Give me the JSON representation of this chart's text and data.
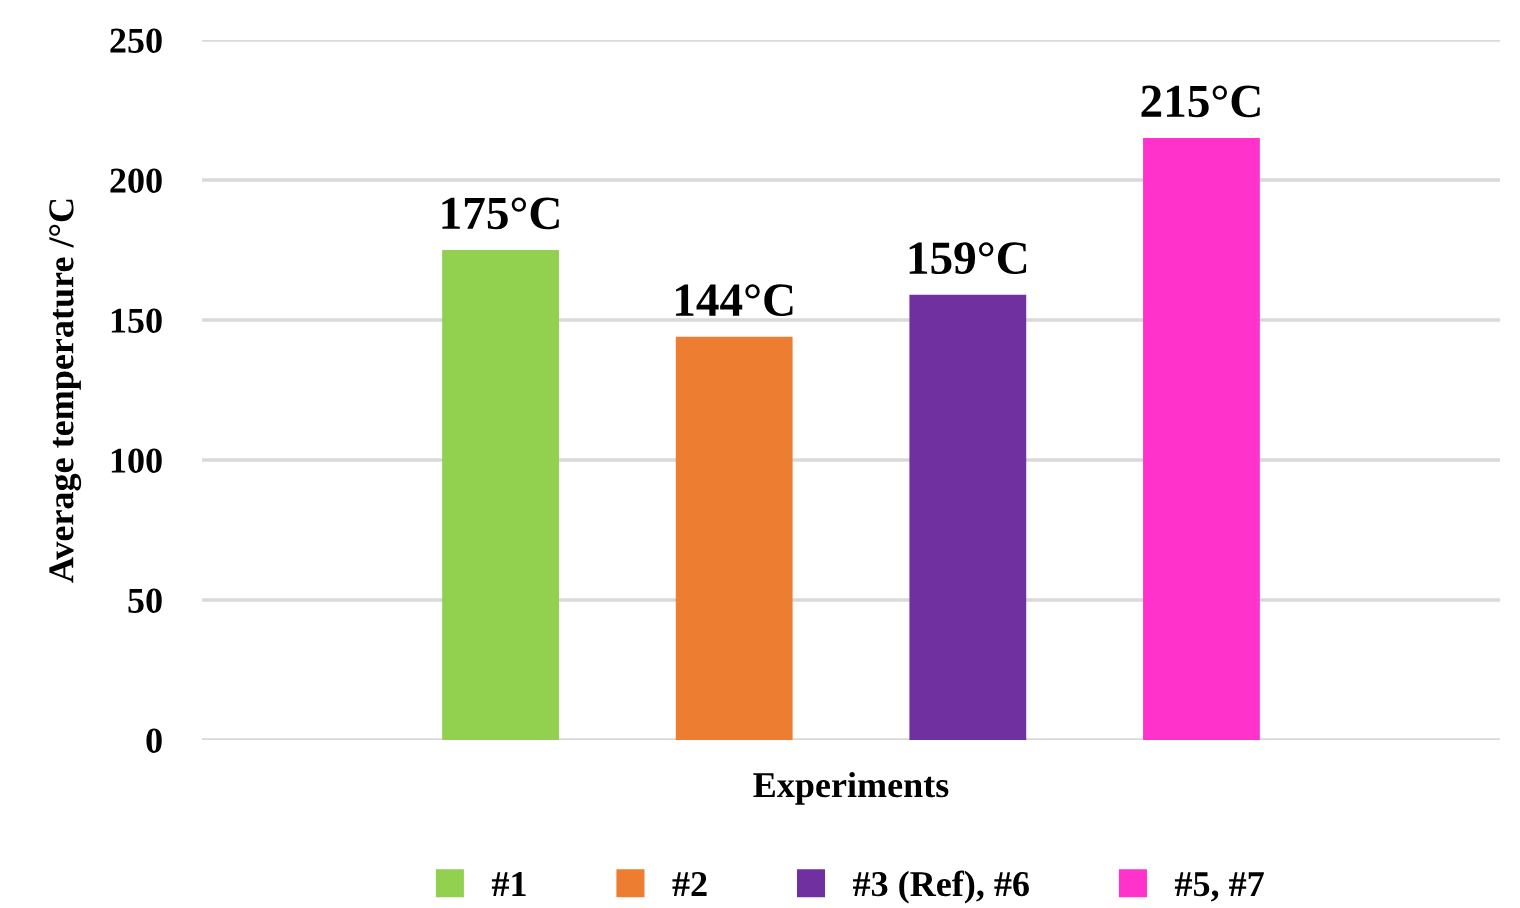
{
  "chart_data": {
    "type": "bar",
    "xlabel": "Experiments",
    "ylabel": "Average temperature /°C",
    "categories": [
      null
    ],
    "series": [
      {
        "name": "#1",
        "color": "#92d050",
        "values": [
          175
        ],
        "value_labels": [
          "175°C"
        ]
      },
      {
        "name": "#2",
        "color": "#ed7d31",
        "values": [
          144
        ],
        "value_labels": [
          "144°C"
        ]
      },
      {
        "name": "#3 (Ref), #6",
        "color": "#7030a0",
        "values": [
          159
        ],
        "value_labels": [
          "159°C"
        ]
      },
      {
        "name": "#5, #7",
        "color": "#ff33cc",
        "values": [
          215
        ],
        "value_labels": [
          "215°C"
        ]
      }
    ],
    "ylim": [
      0,
      250
    ],
    "yticks": [
      0,
      50,
      100,
      150,
      200,
      250
    ],
    "grid": "y",
    "legend": "bottom"
  }
}
